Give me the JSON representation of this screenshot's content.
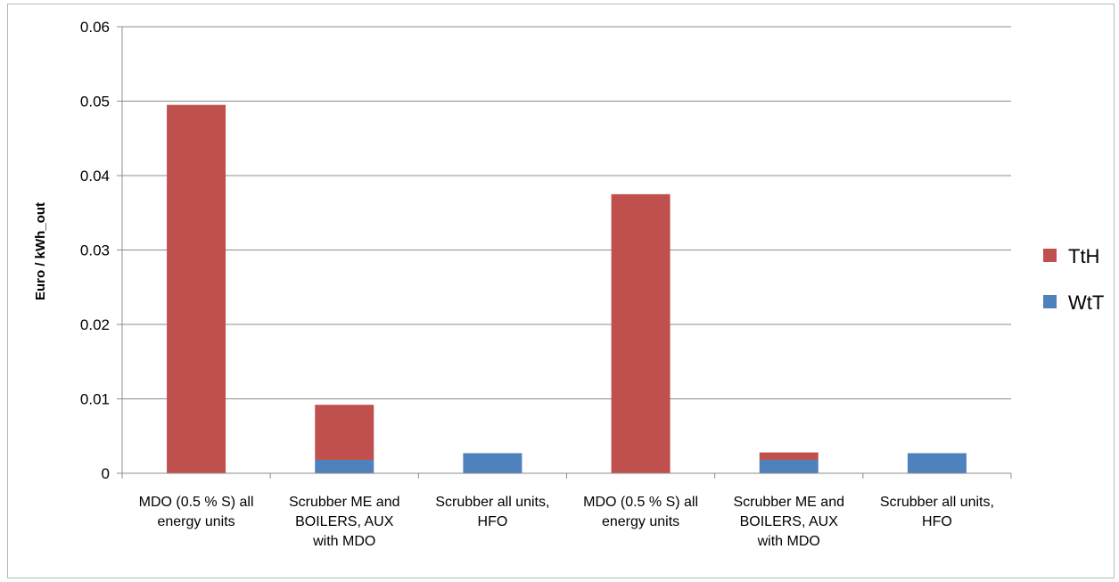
{
  "chart_data": {
    "type": "bar",
    "stacked": true,
    "title": "",
    "xlabel": "",
    "ylabel": "Euro / kWh_out",
    "ylim": [
      0,
      0.06
    ],
    "yticks": [
      0,
      0.01,
      0.02,
      0.03,
      0.04,
      0.05,
      0.06
    ],
    "ytick_labels": [
      "0",
      "0.01",
      "0.02",
      "0.03",
      "0.04",
      "0.05",
      "0.06"
    ],
    "grid": true,
    "legend_position": "right",
    "categories": [
      [
        "MDO (0.5 % S) all",
        "energy units"
      ],
      [
        "Scrubber ME and",
        "BOILERS, AUX",
        "with MDO"
      ],
      [
        "Scrubber all units,",
        "HFO"
      ],
      [
        "MDO (0.5 % S) all",
        "energy units"
      ],
      [
        "Scrubber ME and",
        "BOILERS, AUX",
        "with MDO"
      ],
      [
        "Scrubber all units,",
        "HFO"
      ]
    ],
    "series": [
      {
        "name": "WtT",
        "color": "#4f81bd",
        "values": [
          0,
          0.0018,
          0.0027,
          0,
          0.0018,
          0.0027
        ]
      },
      {
        "name": "TtH",
        "color": "#c0504d",
        "values": [
          0.0495,
          0.0074,
          0,
          0.0375,
          0.001,
          0
        ]
      }
    ],
    "legend_order": [
      "TtH",
      "WtT"
    ]
  }
}
